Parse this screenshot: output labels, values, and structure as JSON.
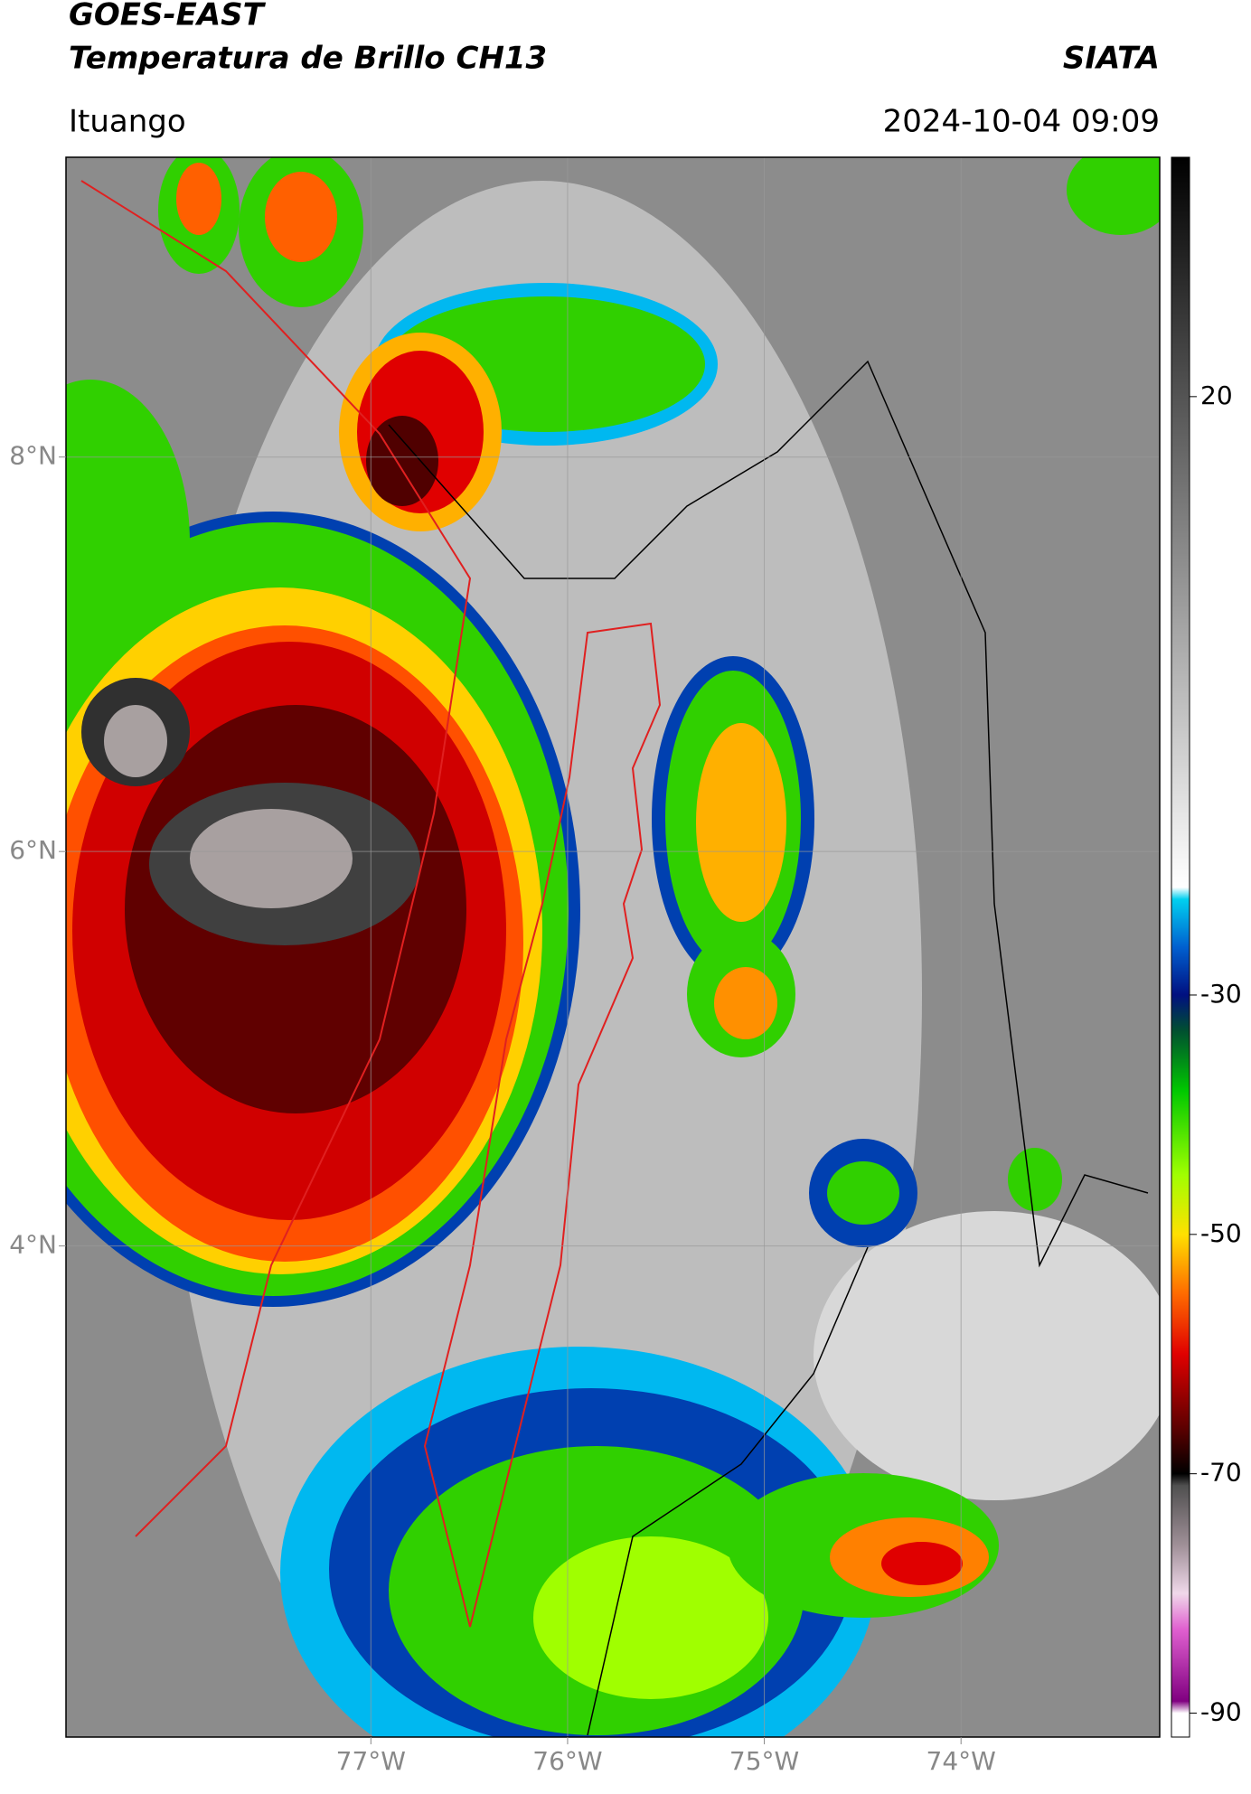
{
  "header": {
    "title": "GOES-EAST",
    "subtitle": "Temperatura de Brillo CH13",
    "brand": "SIATA",
    "location": "Ituango",
    "datetime": "2024-10-04 09:09"
  },
  "map": {
    "xlim": [
      -78.55,
      -72.99
    ],
    "ylim": [
      1.51,
      9.52
    ],
    "xticks": [
      {
        "value": -77,
        "label": "77°W"
      },
      {
        "value": -76,
        "label": "76°W"
      },
      {
        "value": -75,
        "label": "75°W"
      },
      {
        "value": -74,
        "label": "74°W"
      }
    ],
    "yticks": [
      {
        "value": 8,
        "label": "8°N"
      },
      {
        "value": 6,
        "label": "6°N"
      },
      {
        "value": 4,
        "label": "4°N"
      }
    ],
    "grid": true
  },
  "colorbar": {
    "clim": [
      -92,
      40
    ],
    "ticks": [
      20,
      -30,
      -50,
      -70,
      -90
    ],
    "colormap": [
      {
        "value": -92,
        "color": "#ffffff"
      },
      {
        "value": -90,
        "color": "#ffffff"
      },
      {
        "value": -89,
        "color": "#800080"
      },
      {
        "value": -83,
        "color": "#e060d0"
      },
      {
        "value": -80,
        "color": "#f0d8ea"
      },
      {
        "value": -76,
        "color": "#a09098"
      },
      {
        "value": -71,
        "color": "#505050"
      },
      {
        "value": -70,
        "color": "#000000"
      },
      {
        "value": -66,
        "color": "#600000"
      },
      {
        "value": -60,
        "color": "#e00000"
      },
      {
        "value": -55,
        "color": "#ff6a00"
      },
      {
        "value": -50,
        "color": "#ffe000"
      },
      {
        "value": -45,
        "color": "#a0ff00"
      },
      {
        "value": -38,
        "color": "#00c800"
      },
      {
        "value": -33,
        "color": "#005030"
      },
      {
        "value": -30,
        "color": "#001080"
      },
      {
        "value": -26,
        "color": "#0060d0"
      },
      {
        "value": -22,
        "color": "#00d0f0"
      },
      {
        "value": -21,
        "color": "#ffffff"
      },
      {
        "value": 40,
        "color": "#000000"
      }
    ]
  }
}
